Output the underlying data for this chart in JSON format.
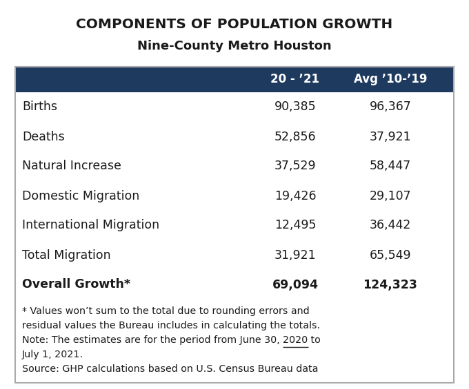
{
  "title_line1": "COMPONENTS OF POPULATION GROWTH",
  "title_line2": "Nine-County Metro Houston",
  "header_bg": "#1e3a5f",
  "header_col1": "20 - ’21",
  "header_col2": "Avg ’10-’19",
  "rows": [
    {
      "label": "Births",
      "val1": "90,385",
      "val2": "96,367",
      "bold": false
    },
    {
      "label": "Deaths",
      "val1": "52,856",
      "val2": "37,921",
      "bold": false
    },
    {
      "label": "Natural Increase",
      "val1": "37,529",
      "val2": "58,447",
      "bold": false
    },
    {
      "label": "Domestic Migration",
      "val1": "19,426",
      "val2": "29,107",
      "bold": false
    },
    {
      "label": "International Migration",
      "val1": "12,495",
      "val2": "36,442",
      "bold": false
    },
    {
      "label": "Total Migration",
      "val1": "31,921",
      "val2": "65,549",
      "bold": false
    },
    {
      "label": "Overall Growth*",
      "val1": "69,094",
      "val2": "124,323",
      "bold": true
    }
  ],
  "footnote_line1": "* Values won’t sum to the total due to rounding errors and",
  "footnote_line2": "residual values the Bureau includes in calculating the totals.",
  "footnote_line3a": "Note: The estimates are for the period from June 30, ",
  "footnote_line3b": "2020",
  "footnote_line3c": " to",
  "footnote_line4": "July 1, 2021.",
  "footnote_line5": "Source: GHP calculations based on U.S. Census Bureau data",
  "bg_color": "#ffffff",
  "text_color": "#1a1a1a",
  "header_text_color": "#ffffff",
  "border_color": "#aaaaaa"
}
